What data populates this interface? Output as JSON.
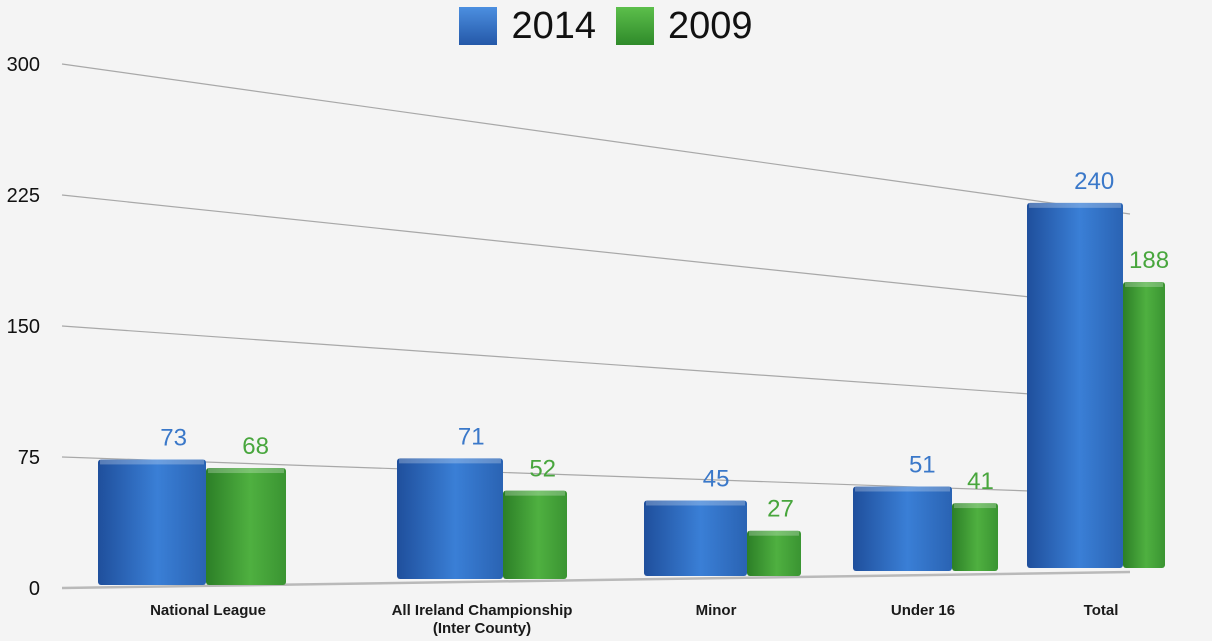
{
  "chart_data": {
    "type": "bar",
    "categories": [
      [
        "National League"
      ],
      [
        "All Ireland Championship",
        "(Inter County)"
      ],
      [
        "Minor"
      ],
      [
        "Under 16"
      ],
      [
        "Total"
      ]
    ],
    "series": [
      {
        "name": "2014",
        "values": [
          73,
          71,
          45,
          51,
          240
        ],
        "color": "#2f6fc4"
      },
      {
        "name": "2009",
        "values": [
          68,
          52,
          27,
          41,
          188
        ],
        "color": "#3e9a34"
      }
    ],
    "data_labels": [
      [
        "73",
        "71",
        "45",
        "51",
        "240"
      ],
      [
        "68",
        "52",
        "27",
        "41",
        "188"
      ]
    ],
    "y_ticks": [
      0,
      75,
      150,
      225,
      300
    ],
    "ylim": [
      0,
      300
    ],
    "grid": true,
    "legend_position": "top-center",
    "label_colors": {
      "2014": "#3a78c9",
      "2009": "#48a63d"
    }
  }
}
